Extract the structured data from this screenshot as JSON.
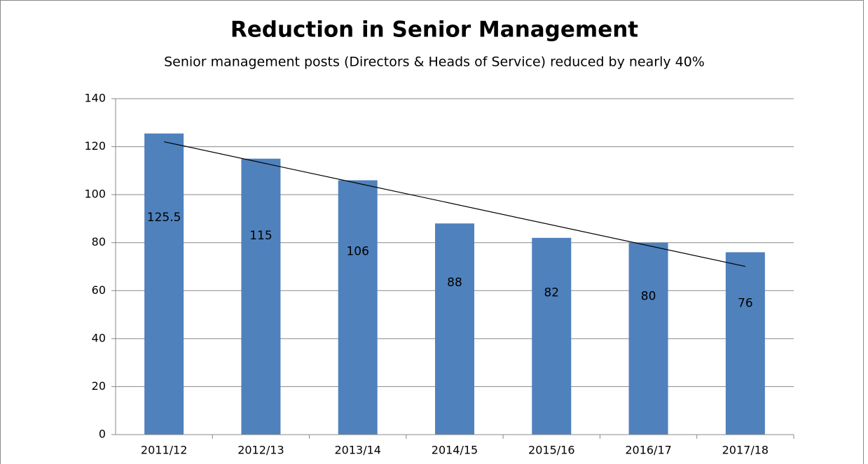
{
  "chart_data": {
    "type": "bar",
    "title": "Reduction in Senior Management",
    "subtitle": "Senior management posts (Directors & Heads of Service) reduced by nearly 40%",
    "categories": [
      "2011/12",
      "2012/13",
      "2013/14",
      "2014/15",
      "2015/16",
      "2016/17",
      "2017/18"
    ],
    "values": [
      125.5,
      115,
      106,
      88,
      82,
      80,
      76
    ],
    "color": "#4f81bd",
    "ylim": [
      0,
      140
    ],
    "yticks": [
      0,
      20,
      40,
      60,
      80,
      100,
      120,
      140
    ],
    "grid": true,
    "trendline": "linear"
  }
}
